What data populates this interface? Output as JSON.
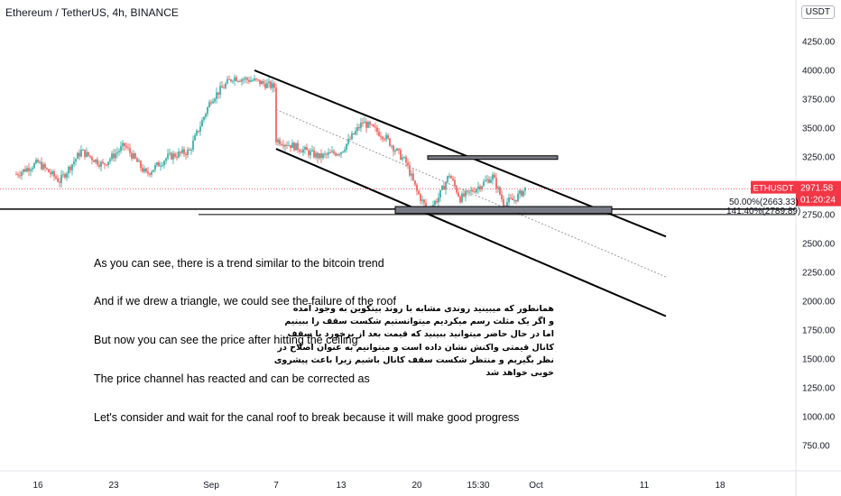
{
  "header": {
    "title": "Ethereum / TetherUS, 4h, BINANCE",
    "currency": "USDT"
  },
  "price_tag": {
    "symbol": "ETHUSDT",
    "price": "2971.58",
    "countdown": "01:20:24",
    "color": "#f23645"
  },
  "fib_labels": [
    "50.00%(2663.33)",
    "141.40%(2789.89)"
  ],
  "notes": {
    "english": [
      "As you can see, there is a trend similar to the bitcoin trend",
      "And if we drew a triangle, we could see the failure of the roof",
      "But now you can see the price after hitting the ceiling",
      "The price channel has reacted and can be corrected as",
      "Let's consider and wait for the canal roof to break because it will make good progress"
    ],
    "persian": [
      "همانطور که میبینید روندی مشابه با روند بیتکوین به وجود آمده",
      "و اگر یک مثلث رسم میکردیم میتوانستیم شکست سقف را ببینیم",
      "اما در حال حاضر میتوانید ببینید که قیمت بعد از برخورد با سقف",
      "کانال قیمتی واکنش نشان داده است و میتوانیم به عنوان اصلاح در",
      "نظر بگیریم و منتظر شکست سقف کانال باشیم زیرا باعث پیشروی",
      "خوبی خواهد شد"
    ]
  },
  "colors": {
    "up": "#26a69a",
    "down": "#ef5350",
    "line": "#000000",
    "dotted_channel": "#9598a1",
    "zone_fill": "#787b86"
  },
  "chart_data": {
    "type": "candlestick",
    "symbol": "ETHUSDT",
    "interval": "4h",
    "y_ticks": [
      4250,
      4000,
      3750,
      3500,
      3250,
      3000,
      2750,
      2500,
      2250,
      2000,
      1750,
      1500,
      1250,
      1000,
      750
    ],
    "y_tick_labels": [
      "4250.00",
      "4000.00",
      "3750.00",
      "3500.00",
      "3250.00",
      "3000.00",
      "2750.00",
      "2500.00",
      "2250.00",
      "2000.00",
      "1750.00",
      "1500.00",
      "1250.00",
      "1000.00",
      "750.00"
    ],
    "x_tick_labels": [
      "16",
      "23",
      "Sep",
      "7",
      "13",
      "20",
      "15:30",
      "Oct",
      "11",
      "18"
    ],
    "ylim": [
      540,
      4420
    ],
    "last_price": 2971.58,
    "price_path_keypoints": [
      {
        "x": "Aug 14",
        "close": 3100
      },
      {
        "x": "Aug 16",
        "close": 3200
      },
      {
        "x": "Aug 18",
        "close": 3040
      },
      {
        "x": "Aug 20",
        "close": 3300
      },
      {
        "x": "Aug 22",
        "close": 3180
      },
      {
        "x": "Aug 24",
        "close": 3350
      },
      {
        "x": "Aug 26",
        "close": 3100
      },
      {
        "x": "Aug 28",
        "close": 3250
      },
      {
        "x": "Aug 30",
        "close": 3300
      },
      {
        "x": "Sep 1",
        "close": 3750
      },
      {
        "x": "Sep 3",
        "close": 3940
      },
      {
        "x": "Sep 5",
        "close": 3910
      },
      {
        "x": "Sep 7",
        "close": 3850
      },
      {
        "x": "Sep 7",
        "close": 3400
      },
      {
        "x": "Sep 9",
        "close": 3330
      },
      {
        "x": "Sep 11",
        "close": 3250
      },
      {
        "x": "Sep 13",
        "close": 3300
      },
      {
        "x": "Sep 15",
        "close": 3550
      },
      {
        "x": "Sep 17",
        "close": 3430
      },
      {
        "x": "Sep 19",
        "close": 3200
      },
      {
        "x": "Sep 20",
        "close": 2950
      },
      {
        "x": "Sep 21",
        "close": 2780
      },
      {
        "x": "Sep 22",
        "close": 2900
      },
      {
        "x": "Sep 23",
        "close": 3100
      },
      {
        "x": "Sep 24",
        "close": 2890
      },
      {
        "x": "Sep 25",
        "close": 2950
      },
      {
        "x": "Sep 27",
        "close": 3080
      },
      {
        "x": "Sep 28",
        "close": 2850
      },
      {
        "x": "Sep 29",
        "close": 2880
      },
      {
        "x": "Sep 30",
        "close": 2972
      }
    ],
    "annotations": {
      "channel_upper": [
        {
          "x": "Sep 5",
          "y": 4000
        },
        {
          "x": "Oct 13",
          "y": 2560
        }
      ],
      "channel_lower": [
        {
          "x": "Sep 7",
          "y": 3320
        },
        {
          "x": "Oct 13",
          "y": 1870
        }
      ],
      "channel_mid_dotted": [
        {
          "x": "Sep 7",
          "y": 3660
        },
        {
          "x": "Oct 13",
          "y": 2210
        }
      ],
      "horizontal_support": 2790,
      "resistance_zone": [
        3230,
        3260
      ],
      "support_zone": [
        2760,
        2820
      ]
    }
  }
}
